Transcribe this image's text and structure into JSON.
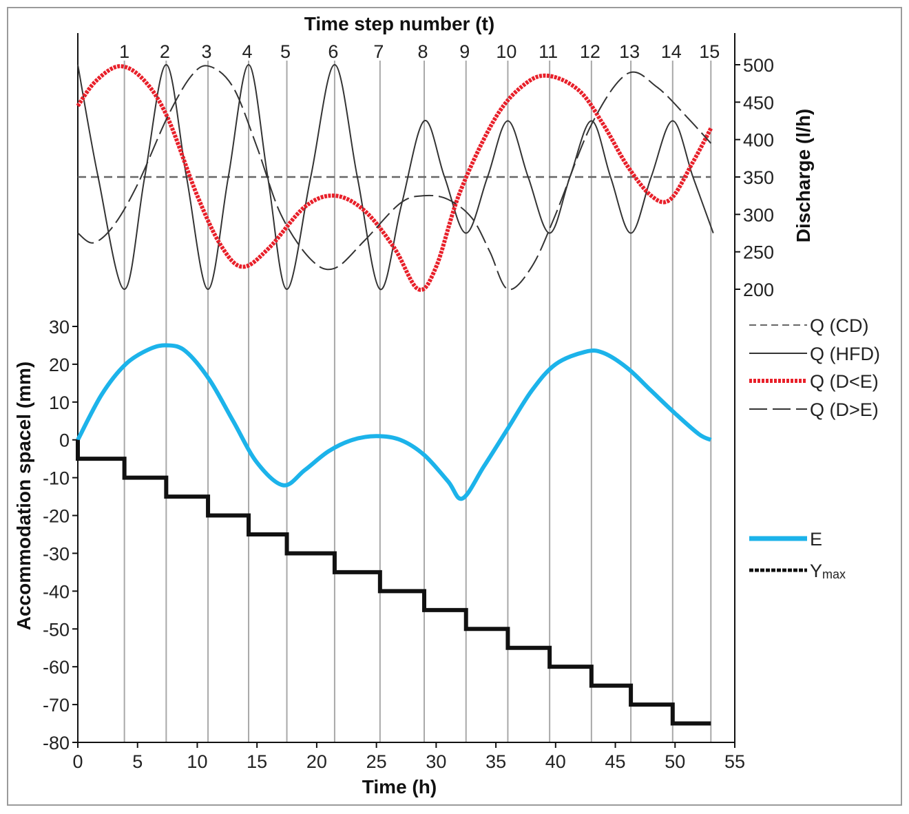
{
  "chart_data": {
    "type": "line",
    "title": "",
    "top_axis": {
      "label": "Time step number  (t)",
      "ticks": [
        1,
        2,
        3,
        4,
        5,
        6,
        7,
        8,
        9,
        10,
        11,
        12,
        13,
        14,
        15
      ],
      "tick_times_h": [
        3.9,
        7.4,
        10.9,
        14.3,
        17.5,
        21.5,
        25.3,
        29.0,
        32.5,
        36.0,
        39.5,
        43.0,
        46.3,
        49.8,
        53.2
      ]
    },
    "x_axis": {
      "label": "Time (h)",
      "range": [
        0,
        55
      ],
      "ticks": [
        0,
        5,
        10,
        15,
        20,
        25,
        30,
        35,
        40,
        45,
        50,
        55
      ]
    },
    "y_left": {
      "label": "Accommodation spacel (mm)",
      "range": [
        -80,
        30
      ],
      "ticks": [
        30,
        20,
        10,
        0,
        -10,
        -20,
        -30,
        -40,
        -50,
        -60,
        -70,
        -80
      ]
    },
    "y_right": {
      "label": "Discharge  (l/h)",
      "range": [
        200,
        500
      ],
      "ticks": [
        500,
        450,
        400,
        350,
        300,
        250,
        200
      ]
    },
    "legend_placement": "right",
    "series": [
      {
        "name": "Q (CD)",
        "axis": "right",
        "color": "#666666",
        "style": "dashed",
        "x": [
          0,
          53
        ],
        "y": [
          350,
          350
        ]
      },
      {
        "name": "Q (HFD)",
        "axis": "right",
        "color": "#333333",
        "style": "solid",
        "x": [
          0,
          1.7,
          3.9,
          5.6,
          7.4,
          9.1,
          10.9,
          12.6,
          14.3,
          15.9,
          17.5,
          19.5,
          21.5,
          23.4,
          25.3,
          27.1,
          29.0,
          30.7,
          32.5,
          34.3,
          36.0,
          37.7,
          39.5,
          41.2,
          43.0,
          44.6,
          46.3,
          48.0,
          49.8,
          51.5,
          53.2
        ],
        "y": [
          500,
          350,
          200,
          350,
          500,
          350,
          200,
          350,
          500,
          350,
          200,
          350,
          500,
          350,
          200,
          313,
          425,
          350,
          275,
          350,
          425,
          350,
          275,
          350,
          425,
          350,
          275,
          350,
          425,
          350,
          275
        ]
      },
      {
        "name": "Q (D<E)",
        "axis": "right",
        "color": "#e8202a",
        "style": "dotted-thick",
        "x": [
          0,
          1.5,
          3.5,
          5.5,
          7.5,
          10,
          12,
          13.8,
          16,
          19,
          21.5,
          24,
          26.5,
          28.5,
          30,
          32,
          35,
          37.5,
          39.5,
          42,
          44,
          46,
          48,
          49.6,
          51.5,
          53
        ],
        "y": [
          445,
          478,
          498,
          480,
          430,
          325,
          258,
          230,
          255,
          310,
          325,
          305,
          255,
          200,
          230,
          330,
          430,
          475,
          485,
          465,
          420,
          365,
          325,
          320,
          370,
          415
        ]
      },
      {
        "name": "Q (D>E)",
        "axis": "right",
        "color": "#333333",
        "style": "long-dash",
        "x": [
          0,
          1.3,
          3,
          5,
          7.5,
          9.5,
          11,
          13,
          15,
          17,
          19.5,
          21.5,
          24,
          27,
          29,
          31,
          33,
          34.5,
          36,
          38,
          40,
          43,
          46,
          48.5,
          51,
          53
        ],
        "y": [
          275,
          262,
          285,
          340,
          430,
          485,
          498,
          470,
          390,
          300,
          240,
          228,
          265,
          315,
          325,
          320,
          295,
          250,
          200,
          230,
          300,
          420,
          488,
          470,
          430,
          395
        ]
      },
      {
        "name": "E",
        "axis": "left",
        "color": "#1cb3ea",
        "style": "solid-thick",
        "x": [
          0,
          2,
          4,
          6,
          7.5,
          9,
          11,
          13,
          15,
          17.2,
          19,
          21,
          23,
          25,
          27,
          29,
          31,
          32.2,
          34,
          36,
          38,
          40,
          42.5,
          44,
          46,
          48,
          50,
          52,
          53
        ],
        "y": [
          0,
          12,
          20,
          24,
          25,
          23.5,
          16,
          5,
          -6,
          -12,
          -8,
          -3,
          0,
          1,
          0,
          -4,
          -11,
          -15.5,
          -7,
          3,
          13,
          20,
          23.3,
          23,
          19,
          13,
          7,
          1.5,
          0
        ]
      },
      {
        "name": "Y",
        "name_subscript": "max",
        "axis": "left",
        "color": "#111111",
        "style": "solid-thick",
        "x": [
          0,
          0,
          3.9,
          3.9,
          7.4,
          7.4,
          10.9,
          10.9,
          14.3,
          14.3,
          17.5,
          17.5,
          21.5,
          21.5,
          25.3,
          25.3,
          29.0,
          29.0,
          32.5,
          32.5,
          36.0,
          36.0,
          39.5,
          39.5,
          43.0,
          43.0,
          46.3,
          46.3,
          49.8,
          49.8,
          53
        ],
        "y": [
          0,
          -5,
          -5,
          -10,
          -10,
          -15,
          -15,
          -20,
          -20,
          -25,
          -25,
          -30,
          -30,
          -35,
          -35,
          -40,
          -40,
          -45,
          -45,
          -50,
          -50,
          -55,
          -55,
          -60,
          -60,
          -65,
          -65,
          -70,
          -70,
          -75,
          -75
        ]
      }
    ]
  }
}
